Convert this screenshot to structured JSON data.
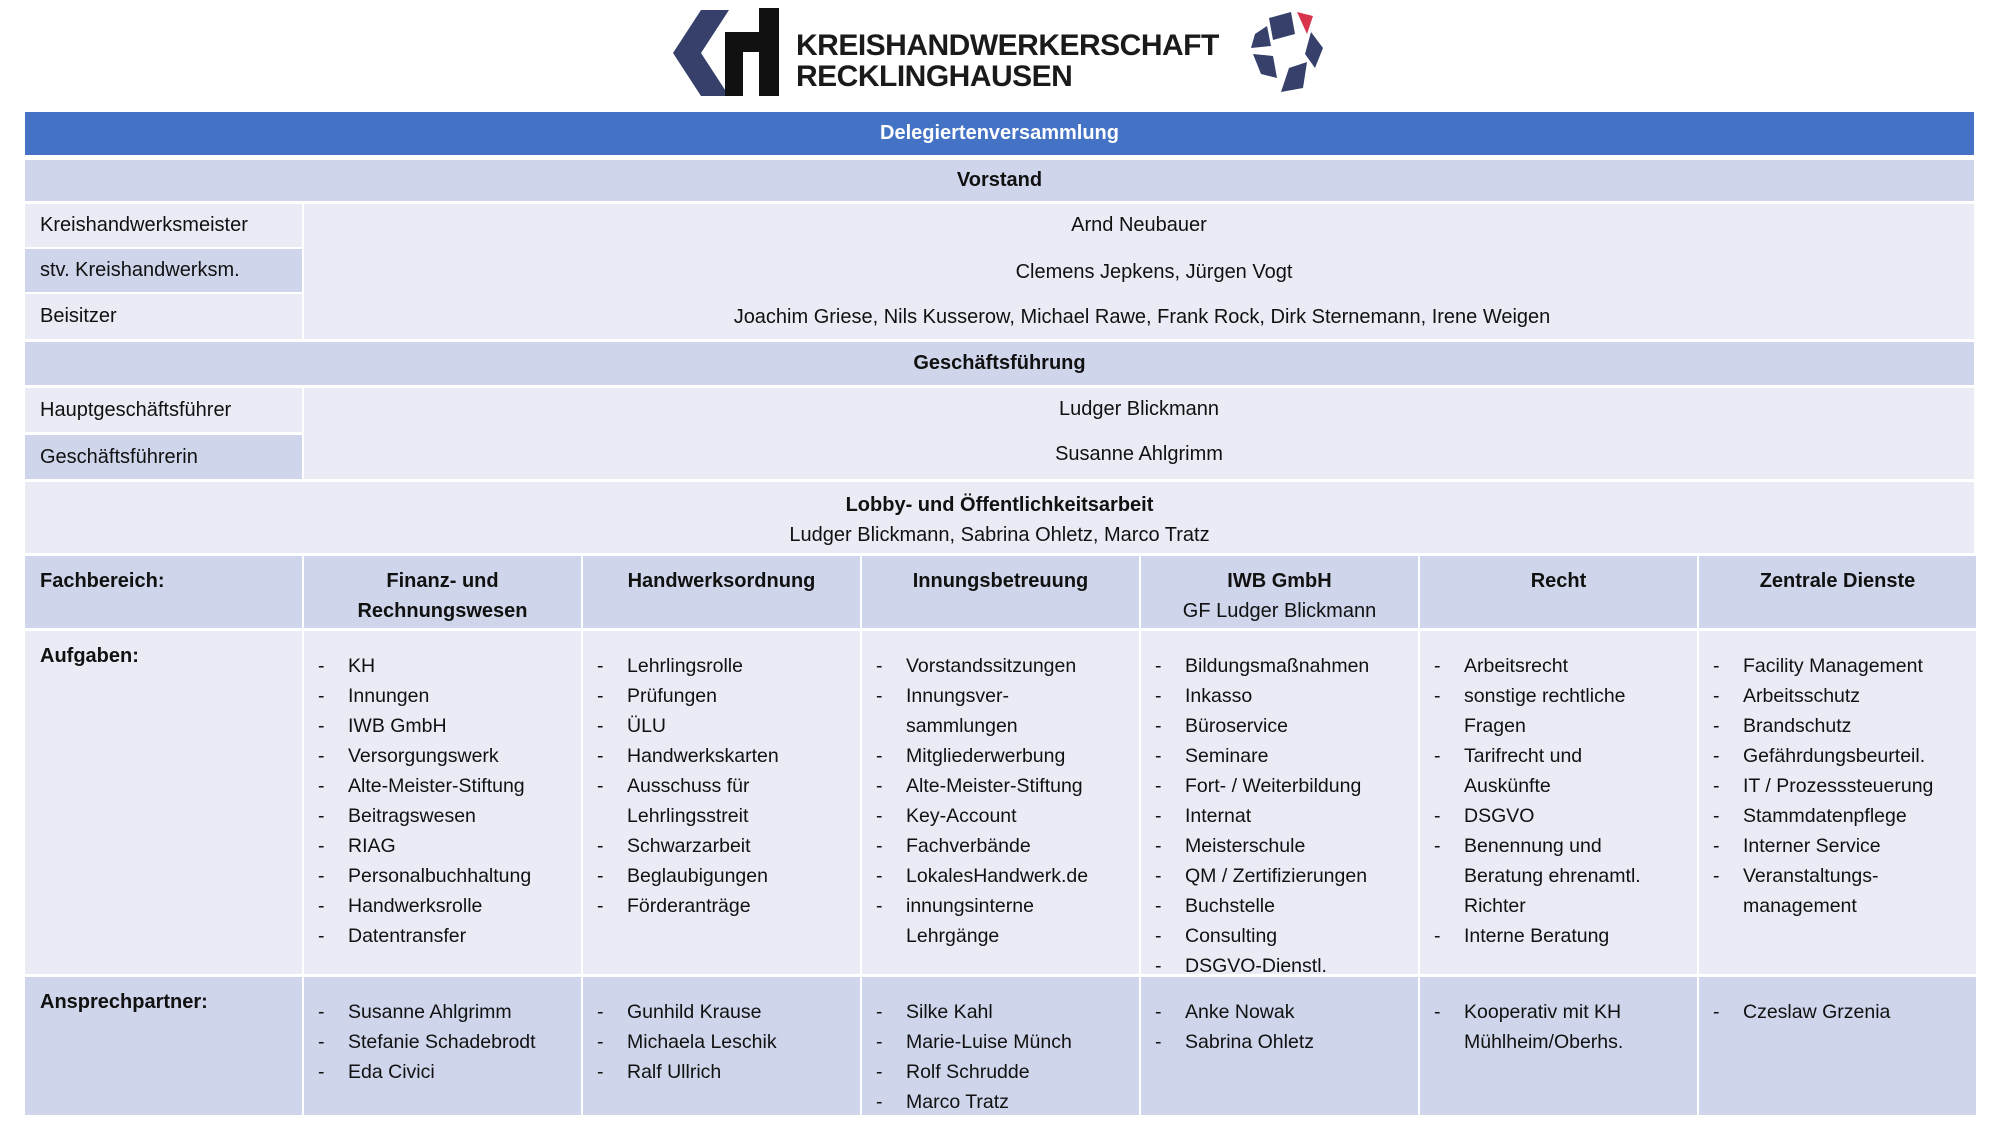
{
  "logo": {
    "line1": "KREISHANDWERKERSCHAFT",
    "line2": "RECKLINGHAUSEN",
    "colors": {
      "navy": "#36406b",
      "black": "#111111",
      "red": "#d8344c"
    }
  },
  "colors": {
    "header_blue": "#4472c4",
    "row_dark": "#cfd5ea",
    "row_light": "#e9ebf5"
  },
  "delegierten": "Delegiertenversammlung",
  "vorstand": {
    "title": "Vorstand",
    "rows": [
      {
        "label": "Kreishandwerksmeister",
        "value": "Arnd Neubauer"
      },
      {
        "label": "stv. Kreishandwerksm.",
        "value": "Clemens Jepkens, Jürgen Vogt"
      },
      {
        "label": "Beisitzer",
        "value": "Joachim Griese, Nils Kusserow, Michael Rawe, Frank Rock, Dirk Sternemann, Irene Weigen"
      }
    ]
  },
  "geschaeftsfuehrung": {
    "title": "Geschäftsführung",
    "rows": [
      {
        "label": "Hauptgeschäftsführer",
        "value": "Ludger Blickmann"
      },
      {
        "label": "Geschäftsführerin",
        "value": "Susanne Ahlgrimm"
      }
    ]
  },
  "lobby": {
    "title": "Lobby- und Öffentlichkeitsarbeit",
    "names": "Ludger Blickmann, Sabrina Ohletz, Marco Tratz"
  },
  "fach": {
    "label_fachbereich": "Fachbereich:",
    "label_aufgaben": "Aufgaben:",
    "label_ansprech": "Ansprechpartner:",
    "columns": [
      {
        "title": "Finanz- und Rechnungswesen",
        "subtitle": "",
        "aufgaben": [
          "KH",
          "Innungen",
          "IWB GmbH",
          "Versorgungswerk",
          "Alte-Meister-Stiftung",
          "Beitragswesen",
          "RIAG",
          "Personalbuchhaltung",
          "Handwerksrolle",
          "Datentransfer"
        ],
        "ansprech": [
          "Susanne Ahlgrimm",
          "Stefanie Schadebrodt",
          "Eda Civici"
        ]
      },
      {
        "title": "Handwerksordnung",
        "subtitle": "",
        "aufgaben": [
          "Lehrlingsrolle",
          "Prüfungen",
          "ÜLU",
          "Handwerkskarten",
          "Ausschuss für|Lehrlingsstreit",
          "Schwarzarbeit",
          "Beglaubigungen",
          "Förderanträge"
        ],
        "ansprech": [
          "Gunhild Krause",
          "Michaela Leschik",
          "Ralf Ullrich"
        ]
      },
      {
        "title": "Innungsbetreuung",
        "subtitle": "",
        "aufgaben": [
          "Vorstandssitzungen",
          "Innungsver-|sammlungen",
          "Mitgliederwerbung",
          "Alte-Meister-Stiftung",
          "Key-Account",
          "Fachverbände",
          "LokalesHandwerk.de",
          "innungsinterne|Lehrgänge"
        ],
        "ansprech": [
          "Silke Kahl",
          "Marie-Luise Münch",
          "Rolf Schrudde",
          "Marco Tratz"
        ]
      },
      {
        "title": "IWB GmbH",
        "subtitle": "GF Ludger Blickmann",
        "aufgaben": [
          "Bildungsmaßnahmen",
          "Inkasso",
          "Büroservice",
          "Seminare",
          "Fort- / Weiterbildung",
          "Internat",
          "Meisterschule",
          "QM / Zertifizierungen",
          "Buchstelle",
          "Consulting",
          "DSGVO-Dienstl."
        ],
        "ansprech": [
          "Anke Nowak",
          "Sabrina Ohletz"
        ]
      },
      {
        "title": "Recht",
        "subtitle": "",
        "aufgaben": [
          "Arbeitsrecht",
          "sonstige rechtliche|Fragen",
          "Tarifrecht und|Auskünfte",
          "DSGVO",
          "Benennung und|Beratung ehrenamtl.|Richter",
          "Interne Beratung"
        ],
        "ansprech": [
          "Kooperativ mit KH|Mühlheim/Oberhs."
        ]
      },
      {
        "title": "Zentrale Dienste",
        "subtitle": "",
        "aufgaben": [
          "Facility Management",
          "Arbeitsschutz",
          "Brandschutz",
          "Gefährdungsbeurteil.",
          "IT / Prozesssteuerung",
          "Stammdatenpflege",
          "Interner Service",
          "Veranstaltungs-|management"
        ],
        "ansprech": [
          "Czeslaw Grzenia"
        ]
      }
    ]
  }
}
